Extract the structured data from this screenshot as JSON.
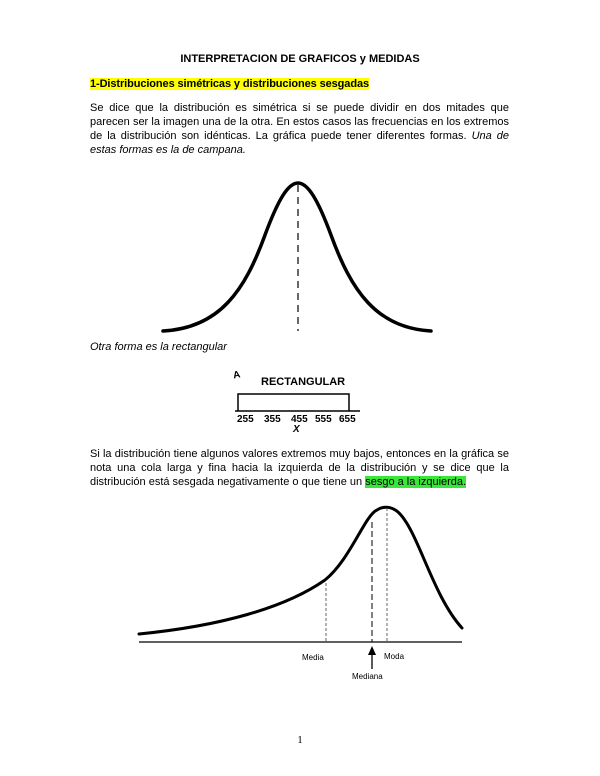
{
  "document": {
    "title": "INTERPRETACION DE GRAFICOS y MEDIDAS",
    "section_heading": "1-Distribuciones simétricas y distribuciones sesgadas",
    "paragraph1": "Se dice que la distribución es simétrica si se puede dividir en dos mitades que parecen ser la imagen una de la otra. En estos casos las frecuencias en los extremos de la distribución son idénticas. La gráfica puede tener diferentes formas.",
    "paragraph1_italic": "Una de estas formas es la de campana.",
    "paragraph2_italic": "Otra forma es la rectangular",
    "paragraph3": "Si la distribución tiene algunos valores extremos muy bajos, entonces en la gráfica se nota una cola larga y fina hacia la izquierda de la distribución y se dice que la distribución está sesgada negativamente o que tiene un",
    "paragraph3_highlight": "sesgo a la izquierda.",
    "page_number": "1"
  },
  "rectangular_figure": {
    "axis_letter": "A",
    "title": "RECTANGULAR",
    "ticks": [
      "255",
      "355",
      "455",
      "555",
      "655"
    ],
    "x_label": "X"
  },
  "skewed_figure": {
    "labels": {
      "media": "Media",
      "mediana": "Mediana",
      "moda": "Moda"
    }
  },
  "colors": {
    "heading_highlight": "#ffff00",
    "text_highlight": "#39e639"
  }
}
